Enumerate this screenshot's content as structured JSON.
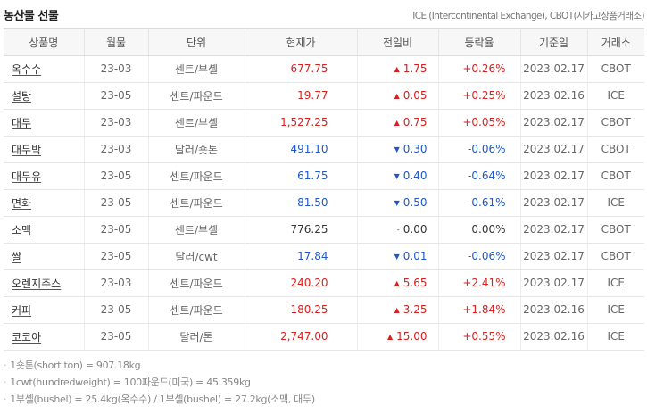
{
  "header": {
    "title": "농산물 선물",
    "source": "ICE (Intercontinental Exchange), CBOT(시카고상품거래소)"
  },
  "table": {
    "columns": [
      "상품명",
      "월물",
      "단위",
      "현재가",
      "전일비",
      "등락율",
      "기준일",
      "거래소"
    ],
    "rows": [
      {
        "name": "옥수수",
        "month": "23-03",
        "unit": "센트/부셸",
        "price": "677.75",
        "arrow": "▲",
        "change": "1.75",
        "rate": "+0.26%",
        "date": "2023.02.17",
        "exchange": "CBOT",
        "dir": "up"
      },
      {
        "name": "설탕",
        "month": "23-05",
        "unit": "센트/파운드",
        "price": "19.77",
        "arrow": "▲",
        "change": "0.05",
        "rate": "+0.25%",
        "date": "2023.02.16",
        "exchange": "ICE",
        "dir": "up"
      },
      {
        "name": "대두",
        "month": "23-03",
        "unit": "센트/부셸",
        "price": "1,527.25",
        "arrow": "▲",
        "change": "0.75",
        "rate": "+0.05%",
        "date": "2023.02.17",
        "exchange": "CBOT",
        "dir": "up"
      },
      {
        "name": "대두박",
        "month": "23-03",
        "unit": "달러/숏톤",
        "price": "491.10",
        "arrow": "▼",
        "change": "0.30",
        "rate": "-0.06%",
        "date": "2023.02.17",
        "exchange": "CBOT",
        "dir": "down"
      },
      {
        "name": "대두유",
        "month": "23-05",
        "unit": "센트/파운드",
        "price": "61.75",
        "arrow": "▼",
        "change": "0.40",
        "rate": "-0.64%",
        "date": "2023.02.17",
        "exchange": "CBOT",
        "dir": "down"
      },
      {
        "name": "면화",
        "month": "23-05",
        "unit": "센트/파운드",
        "price": "81.50",
        "arrow": "▼",
        "change": "0.50",
        "rate": "-0.61%",
        "date": "2023.02.17",
        "exchange": "ICE",
        "dir": "down"
      },
      {
        "name": "소맥",
        "month": "23-05",
        "unit": "센트/부셸",
        "price": "776.25",
        "arrow": "-",
        "change": "0.00",
        "rate": "0.00%",
        "date": "2023.02.17",
        "exchange": "CBOT",
        "dir": "flat"
      },
      {
        "name": "쌀",
        "month": "23-05",
        "unit": "달러/cwt",
        "price": "17.84",
        "arrow": "▼",
        "change": "0.01",
        "rate": "-0.06%",
        "date": "2023.02.17",
        "exchange": "CBOT",
        "dir": "down"
      },
      {
        "name": "오렌지주스",
        "month": "23-03",
        "unit": "센트/파운드",
        "price": "240.20",
        "arrow": "▲",
        "change": "5.65",
        "rate": "+2.41%",
        "date": "2023.02.17",
        "exchange": "ICE",
        "dir": "up"
      },
      {
        "name": "커피",
        "month": "23-05",
        "unit": "센트/파운드",
        "price": "180.25",
        "arrow": "▲",
        "change": "3.25",
        "rate": "+1.84%",
        "date": "2023.02.16",
        "exchange": "ICE",
        "dir": "up"
      },
      {
        "name": "코코아",
        "month": "23-05",
        "unit": "달러/톤",
        "price": "2,747.00",
        "arrow": "▲",
        "change": "15.00",
        "rate": "+0.55%",
        "date": "2023.02.16",
        "exchange": "ICE",
        "dir": "up"
      }
    ]
  },
  "notes": [
    "1숏톤(short ton) = 907.18kg",
    "1cwt(hundredweight) = 100파운드(미국) = 45.359kg",
    "1부셸(bushel) = 25.4kg(옥수수) / 1부셸(bushel) = 27.2kg(소맥, 대두)"
  ],
  "colors": {
    "up": "#d8201e",
    "down": "#1e57c8",
    "flat": "#333333"
  }
}
